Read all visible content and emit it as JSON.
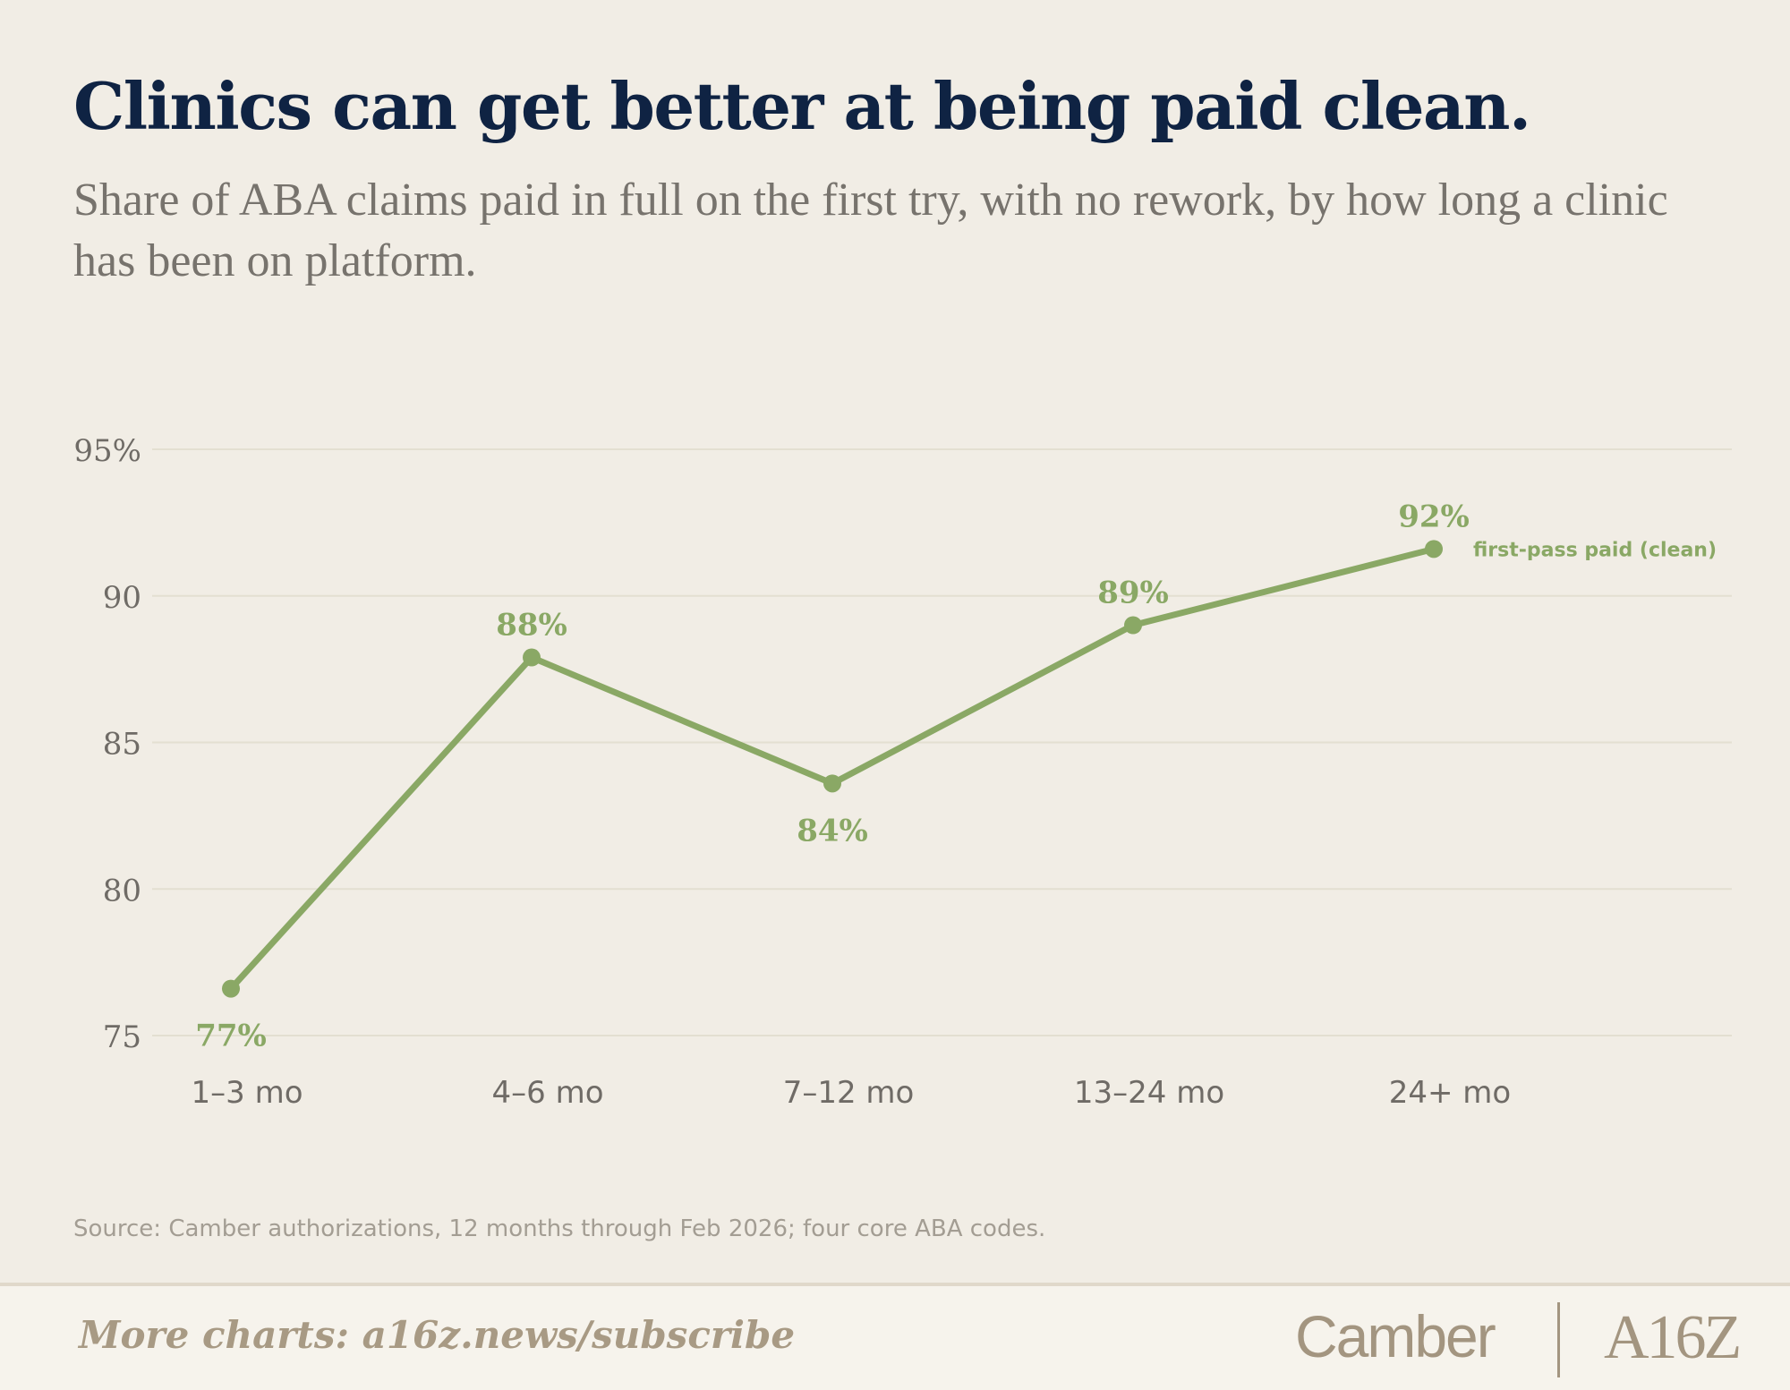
{
  "header": {
    "title": "Clinics can get better at being paid clean.",
    "subtitle": "Share of ABA claims paid in full on the first try, with no rework, by how long a clinic has been on platform."
  },
  "chart_data": {
    "type": "line",
    "categories": [
      "1–3 mo",
      "4–6 mo",
      "7–12 mo",
      "13–24 mo",
      "24+ mo"
    ],
    "series": [
      {
        "name": "first-pass paid (clean)",
        "values": [
          76.6,
          87.9,
          83.6,
          89.0,
          91.6
        ],
        "labels": [
          "77%",
          "88%",
          "84%",
          "89%",
          "92%"
        ],
        "color": "#8aa865"
      }
    ],
    "ylim": [
      75,
      95
    ],
    "yticks": [
      {
        "value": 95,
        "label": "95%"
      },
      {
        "value": 90,
        "label": "90"
      },
      {
        "value": 85,
        "label": "85"
      },
      {
        "value": 80,
        "label": "80"
      },
      {
        "value": 75,
        "label": "75"
      }
    ],
    "grid": true,
    "legend": "inline-end",
    "xlabel": "",
    "ylabel": ""
  },
  "source": "Source: Camber authorizations, 12 months through Feb 2026; four core ABA codes.",
  "footer": {
    "link_text": "More charts: a16z.news/subscribe",
    "brand_left": "Camber",
    "brand_right": "A16Z"
  },
  "colors": {
    "background": "#f1ede5",
    "title": "#0f2343",
    "subtitle": "#77736d",
    "accent": "#8aa865",
    "grid": "#e3dfd1",
    "brand": "#a39580"
  }
}
